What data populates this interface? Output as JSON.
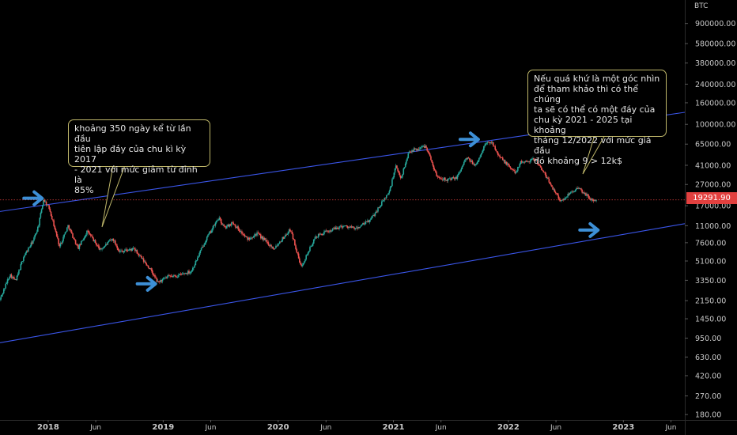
{
  "currency_label": "BTC",
  "last_price_label": "19291.90",
  "annotations": [
    {
      "text": "khoảng 350 ngày kể từ lần đầu\ntiên lập đáy của chu kì kỳ 2017\n- 2021 với mức giảm từ đỉnh là\n85%"
    },
    {
      "text": "Nếu quá khứ là một góc nhìn\nđể tham khảo thì có thể chúng\nta sẽ có thể có một đáy của\nchu kỳ 2021 - 2025 tại khoảng\ntháng 12/2022 với mức giá đầu\nđó khoảng 9 > 12k$"
    }
  ],
  "colors": {
    "background": "#000000",
    "up_candle": "#26a69a",
    "down_candle": "#ef5350",
    "channel_line": "#3a55e8",
    "arrow": "#3d8fd6",
    "last_price": "#e2403f",
    "axis_text": "#c8c8c8"
  },
  "chart_data": {
    "type": "candlestick",
    "y_scale": "log",
    "ylim": [
      160,
      1500000
    ],
    "xlim": [
      "2017-08-01",
      "2023-07-15"
    ],
    "y_ticks": [
      180,
      270,
      420,
      630,
      950,
      1450,
      2150,
      3350,
      5100,
      7600,
      11000,
      17000,
      27000,
      41000,
      65000,
      100000,
      160000,
      240000,
      380000,
      580000,
      900000
    ],
    "y_tick_labels": [
      "180.00",
      "270.00",
      "420.00",
      "630.00",
      "950.00",
      "1450.00",
      "2150.00",
      "3350.00",
      "5100.00",
      "7600.00",
      "11000.00",
      "17000.00",
      "27000.00",
      "41000.00",
      "65000.00",
      "100000.00",
      "160000.00",
      "240000.00",
      "380000.00",
      "580000.00",
      "900000.00"
    ],
    "x_ticks": [
      {
        "date": "2018-01-01",
        "label": "2018",
        "major": true
      },
      {
        "date": "2018-06-01",
        "label": "Jun",
        "major": false
      },
      {
        "date": "2019-01-01",
        "label": "2019",
        "major": true
      },
      {
        "date": "2019-06-01",
        "label": "Jun",
        "major": false
      },
      {
        "date": "2020-01-01",
        "label": "2020",
        "major": true
      },
      {
        "date": "2020-06-01",
        "label": "Jun",
        "major": false
      },
      {
        "date": "2021-01-01",
        "label": "2021",
        "major": true
      },
      {
        "date": "2021-06-01",
        "label": "Jun",
        "major": false
      },
      {
        "date": "2022-01-01",
        "label": "2022",
        "major": true
      },
      {
        "date": "2022-06-01",
        "label": "Jun",
        "major": false
      },
      {
        "date": "2023-01-01",
        "label": "2023",
        "major": true
      },
      {
        "date": "2023-06-01",
        "label": "Jun",
        "major": false
      }
    ],
    "last_price": 19291.9,
    "price_path": [
      [
        "2017-08-01",
        2200
      ],
      [
        "2017-09-01",
        3800
      ],
      [
        "2017-09-20",
        3300
      ],
      [
        "2017-10-15",
        5600
      ],
      [
        "2017-11-15",
        8000
      ],
      [
        "2017-12-01",
        11000
      ],
      [
        "2017-12-17",
        19500
      ],
      [
        "2018-01-05",
        16000
      ],
      [
        "2018-02-06",
        7000
      ],
      [
        "2018-03-05",
        11000
      ],
      [
        "2018-04-06",
        6700
      ],
      [
        "2018-05-05",
        9800
      ],
      [
        "2018-06-15",
        6500
      ],
      [
        "2018-07-25",
        8300
      ],
      [
        "2018-08-15",
        6300
      ],
      [
        "2018-10-01",
        6600
      ],
      [
        "2018-11-20",
        4300
      ],
      [
        "2018-12-15",
        3200
      ],
      [
        "2019-01-15",
        3600
      ],
      [
        "2019-02-15",
        3700
      ],
      [
        "2019-04-01",
        4100
      ],
      [
        "2019-05-15",
        8000
      ],
      [
        "2019-06-26",
        13000
      ],
      [
        "2019-07-15",
        10500
      ],
      [
        "2019-08-10",
        11800
      ],
      [
        "2019-09-25",
        8200
      ],
      [
        "2019-10-26",
        9300
      ],
      [
        "2019-12-18",
        6700
      ],
      [
        "2020-02-10",
        10200
      ],
      [
        "2020-03-13",
        4500
      ],
      [
        "2020-04-30",
        8700
      ],
      [
        "2020-06-01",
        9600
      ],
      [
        "2020-07-25",
        11000
      ],
      [
        "2020-09-05",
        10300
      ],
      [
        "2020-10-20",
        12500
      ],
      [
        "2020-11-30",
        19000
      ],
      [
        "2020-12-20",
        23500
      ],
      [
        "2021-01-08",
        40000
      ],
      [
        "2021-01-25",
        31000
      ],
      [
        "2021-02-20",
        56000
      ],
      [
        "2021-03-15",
        58000
      ],
      [
        "2021-04-14",
        63000
      ],
      [
        "2021-05-19",
        32000
      ],
      [
        "2021-06-22",
        30000
      ],
      [
        "2021-07-20",
        31000
      ],
      [
        "2021-08-20",
        48000
      ],
      [
        "2021-09-21",
        41000
      ],
      [
        "2021-10-20",
        66000
      ],
      [
        "2021-11-10",
        68000
      ],
      [
        "2021-12-05",
        49000
      ],
      [
        "2022-01-22",
        35000
      ],
      [
        "2022-02-10",
        44000
      ],
      [
        "2022-03-28",
        47000
      ],
      [
        "2022-05-12",
        28000
      ],
      [
        "2022-06-18",
        18500
      ],
      [
        "2022-07-20",
        23500
      ],
      [
        "2022-08-14",
        24500
      ],
      [
        "2022-09-25",
        19000
      ],
      [
        "2022-10-08",
        19300
      ]
    ],
    "channel_lines": [
      {
        "name": "",
        "from": [
          "2017-08-01",
          15000
        ],
        "to": [
          "2023-07-15",
          130000
        ]
      },
      {
        "name": "",
        "from": [
          "2017-08-01",
          860
        ],
        "to": [
          "2023-07-15",
          11500
        ]
      }
    ],
    "markers": [
      {
        "type": "arrow",
        "date": "2017-11-20",
        "value": 20000
      },
      {
        "type": "arrow",
        "date": "2018-11-15",
        "value": 3100
      },
      {
        "type": "arrow",
        "date": "2021-09-05",
        "value": 72000
      },
      {
        "type": "arrow",
        "date": "2022-09-20",
        "value": 10000
      }
    ]
  }
}
